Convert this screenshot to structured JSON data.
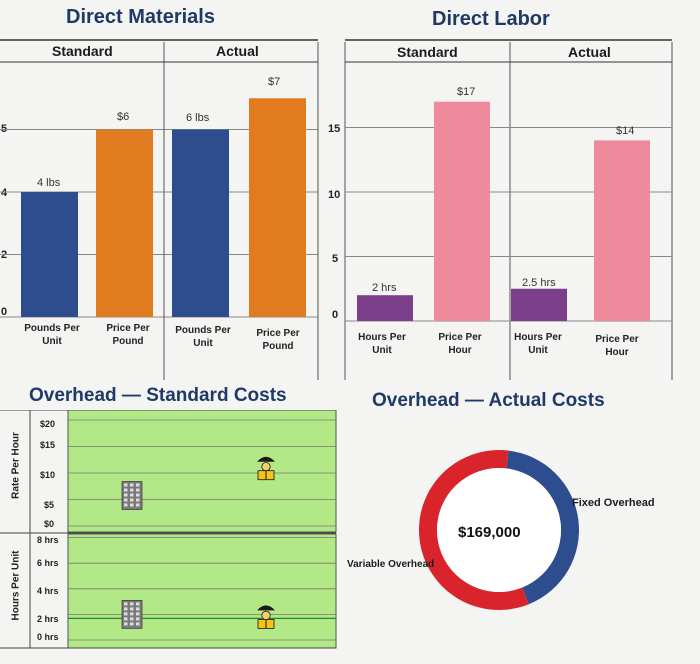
{
  "direct_materials": {
    "title": "Direct Materials",
    "headers": [
      "Standard",
      "Actual"
    ],
    "y_ticks": [
      "0",
      "2",
      "4",
      "5"
    ],
    "categories": [
      "Pounds Per Unit",
      "Price Per Pound",
      "Pounds Per Unit",
      "Price Per Pound"
    ],
    "data_labels": [
      "4 lbs",
      "$6",
      "6 lbs",
      "$7"
    ]
  },
  "direct_labor": {
    "title": "Direct Labor",
    "headers": [
      "Standard",
      "Actual"
    ],
    "y_ticks": [
      "0",
      "5",
      "10",
      "15"
    ],
    "categories": [
      "Hours Per Unit",
      "Price Per Hour",
      "Hours Per Unit",
      "Price Per Hour"
    ],
    "data_labels": [
      "2 hrs",
      "$17",
      "2.5 hrs",
      "$14"
    ]
  },
  "overhead_standard": {
    "title": "Overhead — Standard Costs",
    "rate_axis_label": "Rate Per Hour",
    "rate_ticks": [
      "$20",
      "$15",
      "$10",
      "$5",
      "$0"
    ],
    "hours_axis_label": "Hours Per Unit",
    "hours_ticks": [
      "8 hrs",
      "6 hrs",
      "4 hrs",
      "2 hrs",
      "0 hrs"
    ]
  },
  "overhead_actual": {
    "title": "Overhead — Actual Costs",
    "total": "$169,000",
    "labels": [
      "Fixed Overhead",
      "Variable Overhead"
    ]
  },
  "chart_data": [
    {
      "type": "bar",
      "title": "Direct Materials",
      "groups": [
        "Standard",
        "Actual"
      ],
      "categories": [
        "Pounds Per Unit",
        "Price Per Pound",
        "Pounds Per Unit",
        "Price Per Pound"
      ],
      "values": [
        4,
        6,
        6,
        7
      ],
      "ylim": [
        0,
        8
      ],
      "colors": [
        "#2e4d8f",
        "#e07b1f",
        "#2e4d8f",
        "#e07b1f"
      ]
    },
    {
      "type": "bar",
      "title": "Direct Labor",
      "groups": [
        "Standard",
        "Actual"
      ],
      "categories": [
        "Hours Per Unit",
        "Price Per Hour",
        "Hours Per Unit",
        "Price Per Hour"
      ],
      "values": [
        2,
        17,
        2.5,
        14
      ],
      "ylim": [
        0,
        20
      ],
      "colors": [
        "#7b3f8c",
        "#ee8a9b",
        "#7b3f8c",
        "#ee8a9b"
      ]
    },
    {
      "type": "scatter",
      "title": "Overhead — Standard Costs",
      "panels": [
        {
          "ylabel": "Rate Per Hour",
          "ylim": [
            0,
            20
          ],
          "x": [
            "Fixed",
            "Variable"
          ],
          "values": [
            5,
            11
          ]
        },
        {
          "ylabel": "Hours Per Unit",
          "ylim": [
            0,
            8
          ],
          "x": [
            "Fixed",
            "Variable"
          ],
          "values": [
            2,
            2
          ]
        }
      ],
      "background": "#b2e886"
    },
    {
      "type": "pie",
      "title": "Overhead — Actual Costs",
      "total": "$169,000",
      "slices": [
        {
          "label": "Fixed Overhead",
          "value": 0.42,
          "color": "#2e4d8f"
        },
        {
          "label": "Variable Overhead",
          "value": 0.58,
          "color": "#d9242c"
        }
      ]
    }
  ]
}
